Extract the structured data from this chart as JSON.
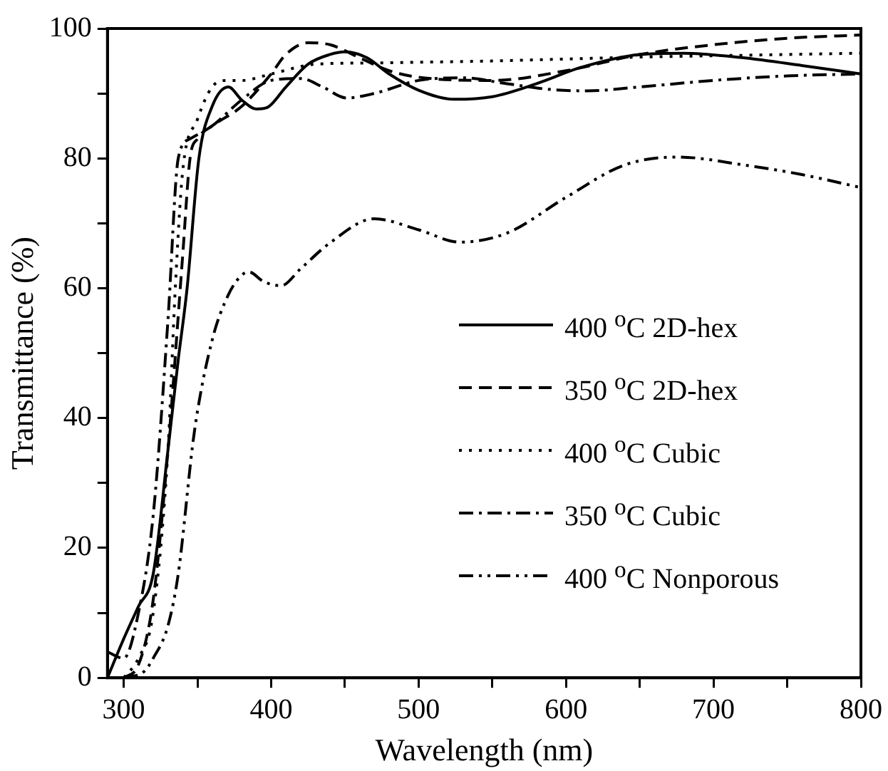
{
  "chart_data": {
    "type": "line",
    "xlabel": "Wavelength (nm)",
    "ylabel": "Transmittance (%)",
    "xlim": [
      289,
      800
    ],
    "xticks": [
      300,
      {
        "value": 350,
        "label": null
      },
      400,
      {
        "value": 450,
        "label": null
      },
      500,
      {
        "value": 550,
        "label": null
      },
      600,
      {
        "value": 650,
        "label": null
      },
      700,
      {
        "value": 750,
        "label": null
      },
      800
    ],
    "ylim": [
      0,
      100
    ],
    "yticks": [
      0,
      {
        "value": 10,
        "label": null
      },
      20,
      {
        "value": 30,
        "label": null
      },
      40,
      {
        "value": 50,
        "label": null
      },
      60,
      {
        "value": 70,
        "label": null
      },
      80,
      {
        "value": 90,
        "label": null
      },
      100
    ],
    "grid": false,
    "legend": "right",
    "marker": "none",
    "series": [
      {
        "name": "400 $^{o}$C 2D-hex",
        "color": "#000000",
        "line_style": "solid",
        "x": [
          289,
          300,
          310,
          320,
          330,
          337,
          343,
          351,
          360,
          371,
          380,
          390,
          397,
          410,
          425,
          440,
          450,
          465,
          480,
          500,
          524,
          550,
          580,
          610,
          650,
          680,
          720,
          760,
          800
        ],
        "values": [
          0,
          6,
          11,
          16,
          35,
          49,
          60,
          80,
          88,
          91,
          89,
          87.6,
          87.8,
          91,
          94.5,
          96,
          96.4,
          95.5,
          93,
          90.5,
          89.1,
          89.5,
          91.5,
          94,
          96,
          96.2,
          95.5,
          94.3,
          93
        ]
      },
      {
        "name": "350 $^{o}$C 2D-hex",
        "color": "#000000",
        "line_style": "dashed",
        "x": [
          300,
          310,
          320,
          330,
          340,
          345,
          350,
          360,
          380,
          400,
          410,
          425,
          440,
          460,
          480,
          500,
          550,
          600,
          650,
          700,
          750,
          800
        ],
        "values": [
          0,
          2,
          12,
          35,
          65,
          80,
          83,
          85,
          88,
          93,
          96,
          97.8,
          97.5,
          95.5,
          93.5,
          92.5,
          92,
          93.5,
          96,
          97.5,
          98.5,
          99
        ]
      },
      {
        "name": "400 $^{o}$C Cubic",
        "color": "#000000",
        "line_style": "dotted",
        "x": [
          300,
          310,
          320,
          330,
          335,
          340,
          350,
          360,
          370,
          380,
          400,
          430,
          470,
          500,
          550,
          600,
          650,
          700,
          750,
          800
        ],
        "values": [
          0,
          3,
          10,
          35,
          60,
          78,
          86,
          91,
          92,
          92,
          93,
          94.5,
          94.7,
          94.8,
          95,
          95.3,
          95.6,
          95.8,
          96,
          96.2
        ]
      },
      {
        "name": "350 $^{o}$C Cubic",
        "color": "#000000",
        "line_style": "dashdot",
        "x": [
          289,
          300,
          310,
          320,
          330,
          337,
          345,
          360,
          380,
          400,
          420,
          435,
          451,
          470,
          500,
          530,
          560,
          590,
          615,
          650,
          700,
          750,
          800
        ],
        "values": [
          4,
          3,
          10,
          25,
          55,
          80,
          83,
          85,
          89,
          92,
          92.3,
          91,
          89.3,
          90,
          92,
          92.4,
          91.5,
          90.6,
          90.4,
          91,
          92,
          92.7,
          93
        ]
      },
      {
        "name": "400 $^{o}$C Nonporous",
        "color": "#000000",
        "line_style": "dashdotdot",
        "x": [
          300,
          314,
          320,
          330,
          337,
          348,
          360,
          371,
          380,
          385,
          395,
          407,
          420,
          440,
          470,
          500,
          528,
          560,
          600,
          640,
          676,
          720,
          760,
          800
        ],
        "values": [
          0,
          1,
          3,
          8,
          16,
          38,
          52,
          59,
          62,
          62.5,
          61,
          60.4,
          63,
          67,
          70.7,
          69,
          67.1,
          68.5,
          74,
          79,
          80.2,
          79,
          77.5,
          75.5
        ]
      }
    ]
  }
}
